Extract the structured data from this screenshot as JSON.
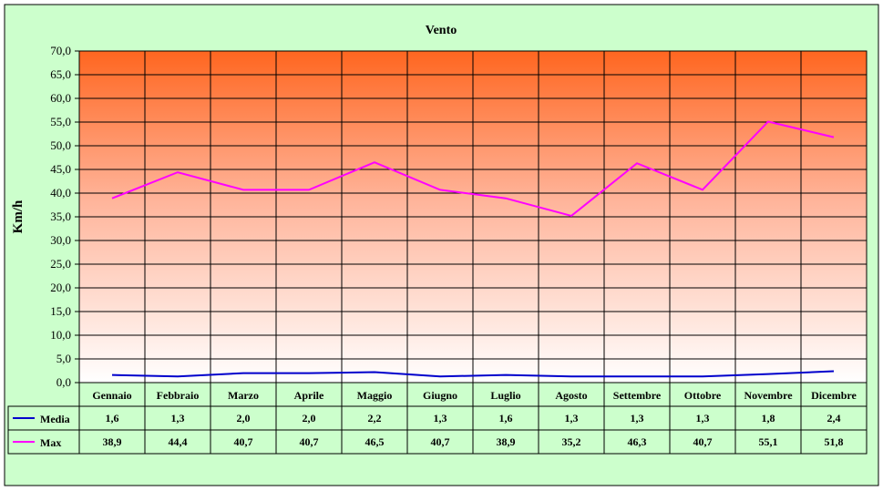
{
  "chart_data": {
    "type": "line",
    "title": "Vento",
    "ylabel": "Km/h",
    "xlabel": "",
    "ylim": [
      0,
      70
    ],
    "ytick_step": 5,
    "ytick_labels": [
      "0,0",
      "5,0",
      "10,0",
      "15,0",
      "20,0",
      "25,0",
      "30,0",
      "35,0",
      "40,0",
      "45,0",
      "50,0",
      "55,0",
      "60,0",
      "65,0",
      "70,0"
    ],
    "categories": [
      "Gennaio",
      "Febbraio",
      "Marzo",
      "Aprile",
      "Maggio",
      "Giugno",
      "Luglio",
      "Agosto",
      "Settembre",
      "Ottobre",
      "Novembre",
      "Dicembre"
    ],
    "grid": true,
    "legend": "data-table-left",
    "series": [
      {
        "name": "Media",
        "color": "#0000cc",
        "values": [
          1.6,
          1.3,
          2.0,
          2.0,
          2.2,
          1.3,
          1.6,
          1.3,
          1.3,
          1.3,
          1.8,
          2.4
        ],
        "labels": [
          "1,6",
          "1,3",
          "2,0",
          "2,0",
          "2,2",
          "1,3",
          "1,6",
          "1,3",
          "1,3",
          "1,3",
          "1,8",
          "2,4"
        ]
      },
      {
        "name": "Max",
        "color": "#ff00ff",
        "values": [
          38.9,
          44.4,
          40.7,
          40.7,
          46.5,
          40.7,
          38.9,
          35.2,
          46.3,
          40.7,
          55.1,
          51.8
        ],
        "labels": [
          "38,9",
          "44,4",
          "40,7",
          "40,7",
          "46,5",
          "40,7",
          "38,9",
          "35,2",
          "46,3",
          "40,7",
          "55,1",
          "51,8"
        ]
      }
    ],
    "colors": {
      "background": "#ccffcc",
      "plot_gradient_top": "#ff6620",
      "plot_gradient_bottom": "#ffffff",
      "grid": "#000000"
    }
  }
}
